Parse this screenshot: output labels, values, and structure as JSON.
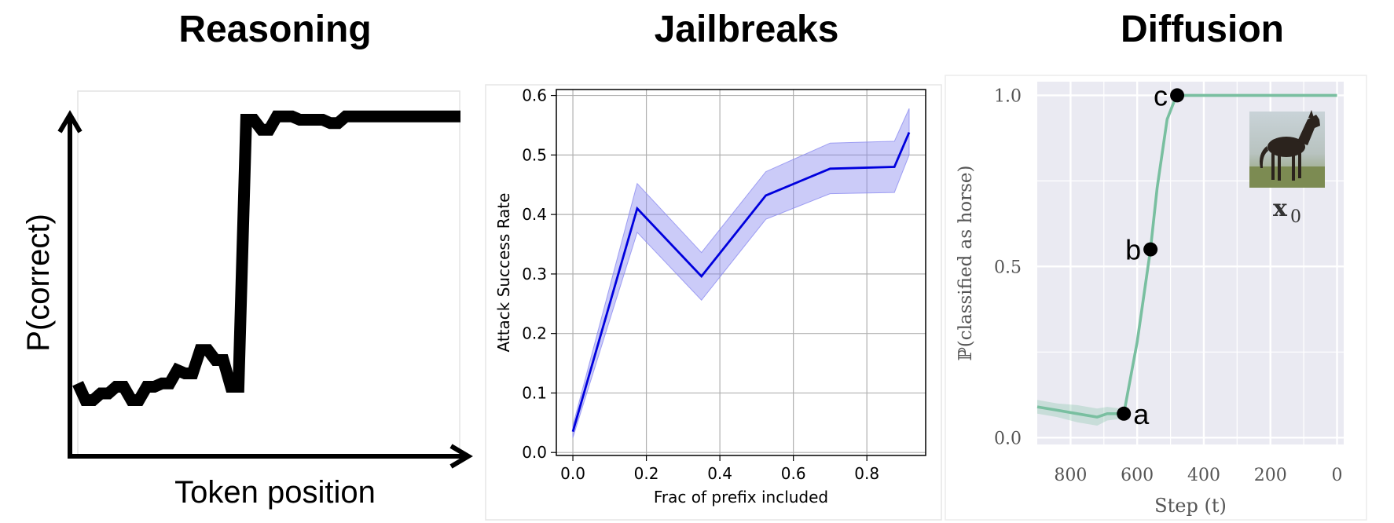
{
  "panels": {
    "reasoning": {
      "title": "Reasoning",
      "xlabel": "Token position",
      "ylabel": "P(correct)"
    },
    "jailbreaks": {
      "title": "Jailbreaks"
    },
    "diffusion": {
      "title": "Diffusion",
      "image_caption": "x",
      "image_caption_sub": "0",
      "image_subject": "horse-photo"
    }
  },
  "chart_data": [
    {
      "type": "line",
      "panel": "reasoning",
      "xlabel": "Token position",
      "ylabel": "P(correct)",
      "series": [
        {
          "color": "#000000",
          "x": [
            0,
            1,
            2,
            3,
            4,
            5,
            6,
            7,
            8,
            9,
            10,
            11,
            12,
            13,
            14,
            15,
            16,
            17,
            18,
            19,
            20,
            21,
            22,
            23,
            24,
            25,
            26,
            27,
            28,
            29,
            30,
            31,
            32,
            33,
            34,
            35,
            36,
            37,
            38,
            39,
            40,
            41,
            42,
            43,
            44,
            45,
            46,
            47,
            48,
            49,
            50
          ],
          "values": [
            0.15,
            0.1,
            0.1,
            0.12,
            0.12,
            0.14,
            0.14,
            0.1,
            0.1,
            0.14,
            0.14,
            0.15,
            0.15,
            0.19,
            0.18,
            0.18,
            0.25,
            0.25,
            0.22,
            0.22,
            0.14,
            0.14,
            0.94,
            0.94,
            0.91,
            0.91,
            0.95,
            0.95,
            0.95,
            0.94,
            0.94,
            0.94,
            0.94,
            0.93,
            0.93,
            0.95,
            0.95,
            0.95,
            0.95,
            0.95,
            0.95,
            0.95,
            0.95,
            0.95,
            0.95,
            0.95,
            0.95,
            0.95,
            0.95,
            0.95,
            0.95
          ]
        }
      ]
    },
    {
      "type": "line",
      "panel": "jailbreaks",
      "xlabel": "Frac of prefix included",
      "ylabel": "Attack Success Rate",
      "xlim": [
        -0.045,
        0.96
      ],
      "ylim": [
        -0.005,
        0.61
      ],
      "xticks": [
        "0.0",
        "0.2",
        "0.4",
        "0.6",
        "0.8"
      ],
      "yticks": [
        "0.0",
        "0.1",
        "0.2",
        "0.3",
        "0.4",
        "0.5",
        "0.6"
      ],
      "grid": true,
      "series": [
        {
          "color": "#0000dd",
          "band_color": "#8c8cf0",
          "x": [
            0.0,
            0.175,
            0.35,
            0.525,
            0.7,
            0.875,
            0.915
          ],
          "values": [
            0.035,
            0.41,
            0.296,
            0.432,
            0.477,
            0.48,
            0.538
          ],
          "lower": [
            0.025,
            0.37,
            0.256,
            0.392,
            0.435,
            0.437,
            0.5
          ],
          "upper": [
            0.045,
            0.452,
            0.336,
            0.472,
            0.52,
            0.523,
            0.578
          ]
        }
      ]
    },
    {
      "type": "line",
      "panel": "diffusion",
      "xlabel": "Step (t)",
      "ylabel": "ℙ(classified as horse)",
      "xlim": [
        900,
        -20
      ],
      "ylim": [
        -0.02,
        1.04
      ],
      "xticks": [
        "800",
        "600",
        "400",
        "200",
        "0"
      ],
      "yticks": [
        "0.0",
        "0.5",
        "1.0"
      ],
      "grid": true,
      "series": [
        {
          "color": "#79bfa0",
          "x": [
            900,
            840,
            780,
            720,
            690,
            650,
            640,
            600,
            560,
            540,
            510,
            490,
            480,
            400,
            300,
            200,
            100,
            0
          ],
          "values": [
            0.09,
            0.08,
            0.07,
            0.06,
            0.07,
            0.07,
            0.07,
            0.28,
            0.55,
            0.73,
            0.93,
            0.98,
            1.0,
            1.0,
            1.0,
            1.0,
            1.0,
            1.0
          ],
          "lower": [
            0.07,
            0.06,
            0.045,
            0.035,
            0.05,
            0.055,
            0.06,
            0.27,
            0.54,
            0.72,
            0.92,
            0.975,
            0.995,
            0.995,
            0.995,
            0.995,
            0.995,
            0.995
          ],
          "upper": [
            0.11,
            0.1,
            0.095,
            0.085,
            0.09,
            0.085,
            0.08,
            0.29,
            0.56,
            0.74,
            0.94,
            0.985,
            1.0,
            1.0,
            1.0,
            1.0,
            1.0,
            1.0
          ]
        }
      ],
      "annotations": [
        {
          "label": "a",
          "x": 640,
          "y": 0.07
        },
        {
          "label": "b",
          "x": 560,
          "y": 0.55
        },
        {
          "label": "c",
          "x": 480,
          "y": 1.0
        }
      ]
    }
  ]
}
